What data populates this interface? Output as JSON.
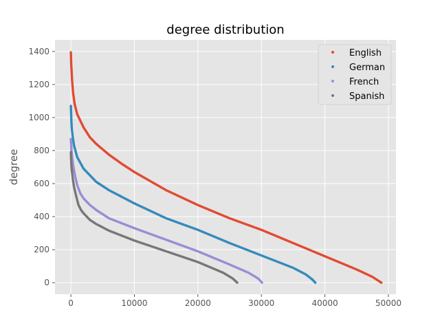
{
  "chart_data": {
    "type": "scatter",
    "title": "degree distribution",
    "xlabel": "",
    "ylabel": "degree",
    "xlim": [
      -2500,
      51200
    ],
    "ylim": [
      -70,
      1470
    ],
    "xticks": [
      0,
      10000,
      20000,
      30000,
      40000,
      50000
    ],
    "yticks": [
      0,
      200,
      400,
      600,
      800,
      1000,
      1200,
      1400
    ],
    "grid": true,
    "legend_position": "top-right",
    "series": [
      {
        "name": "English",
        "color": "#E24A33",
        "points": [
          [
            0,
            1395
          ],
          [
            60,
            1320
          ],
          [
            120,
            1280
          ],
          [
            200,
            1220
          ],
          [
            350,
            1150
          ],
          [
            600,
            1080
          ],
          [
            1000,
            1020
          ],
          [
            2000,
            940
          ],
          [
            3000,
            880
          ],
          [
            4000,
            840
          ],
          [
            6000,
            775
          ],
          [
            8000,
            720
          ],
          [
            10000,
            670
          ],
          [
            15000,
            560
          ],
          [
            20000,
            470
          ],
          [
            25000,
            390
          ],
          [
            30000,
            320
          ],
          [
            35000,
            240
          ],
          [
            40000,
            160
          ],
          [
            45000,
            80
          ],
          [
            47500,
            35
          ],
          [
            48500,
            10
          ],
          [
            48900,
            0
          ]
        ]
      },
      {
        "name": "German",
        "color": "#348ABD",
        "points": [
          [
            0,
            1070
          ],
          [
            40,
            1030
          ],
          [
            80,
            980
          ],
          [
            150,
            930
          ],
          [
            300,
            880
          ],
          [
            500,
            830
          ],
          [
            1000,
            760
          ],
          [
            2000,
            690
          ],
          [
            3000,
            650
          ],
          [
            4000,
            610
          ],
          [
            6000,
            560
          ],
          [
            8000,
            520
          ],
          [
            10000,
            480
          ],
          [
            15000,
            390
          ],
          [
            20000,
            320
          ],
          [
            25000,
            240
          ],
          [
            30000,
            165
          ],
          [
            35000,
            90
          ],
          [
            37000,
            50
          ],
          [
            38000,
            20
          ],
          [
            38500,
            0
          ]
        ]
      },
      {
        "name": "French",
        "color": "#988ED5",
        "points": [
          [
            0,
            870
          ],
          [
            50,
            840
          ],
          [
            100,
            800
          ],
          [
            200,
            760
          ],
          [
            400,
            700
          ],
          [
            700,
            640
          ],
          [
            1000,
            590
          ],
          [
            1500,
            540
          ],
          [
            2000,
            510
          ],
          [
            3000,
            470
          ],
          [
            4000,
            440
          ],
          [
            6000,
            390
          ],
          [
            8000,
            360
          ],
          [
            10000,
            330
          ],
          [
            15000,
            260
          ],
          [
            20000,
            190
          ],
          [
            25000,
            110
          ],
          [
            28000,
            60
          ],
          [
            29500,
            25
          ],
          [
            30100,
            0
          ]
        ]
      },
      {
        "name": "Spanish",
        "color": "#777777",
        "points": [
          [
            0,
            790
          ],
          [
            30,
            750
          ],
          [
            80,
            710
          ],
          [
            150,
            680
          ],
          [
            300,
            630
          ],
          [
            500,
            580
          ],
          [
            800,
            530
          ],
          [
            1200,
            470
          ],
          [
            1600,
            440
          ],
          [
            2000,
            420
          ],
          [
            3000,
            380
          ],
          [
            4000,
            355
          ],
          [
            6000,
            315
          ],
          [
            8000,
            285
          ],
          [
            10000,
            255
          ],
          [
            15000,
            190
          ],
          [
            20000,
            125
          ],
          [
            24000,
            60
          ],
          [
            25500,
            25
          ],
          [
            26200,
            0
          ]
        ]
      }
    ]
  }
}
